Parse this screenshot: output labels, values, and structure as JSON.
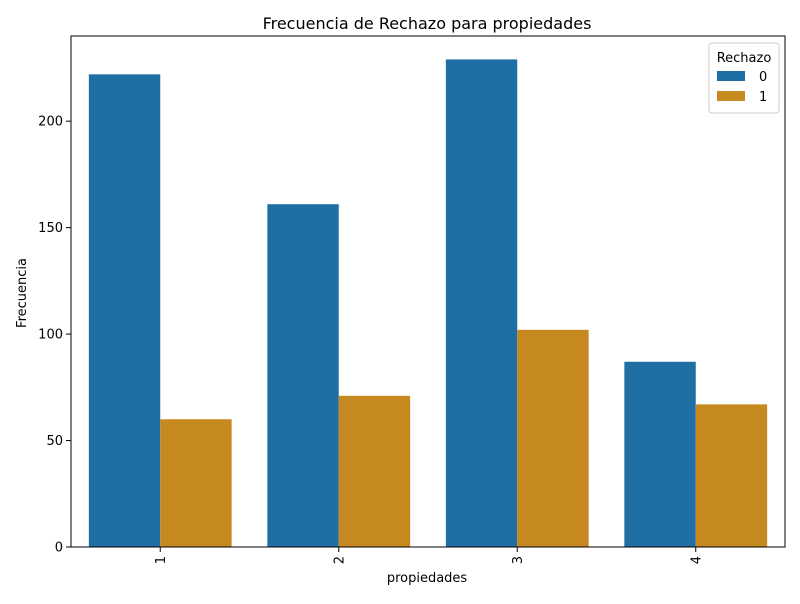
{
  "chart_data": {
    "type": "bar",
    "title": "Frecuencia de Rechazo para propiedades",
    "xlabel": "propiedades",
    "ylabel": "Frecuencia",
    "categories": [
      "1",
      "2",
      "3",
      "4"
    ],
    "series": [
      {
        "name": "0",
        "values": [
          222,
          161,
          229,
          87
        ],
        "color": "#1f6fa5"
      },
      {
        "name": "1",
        "values": [
          60,
          71,
          102,
          67
        ],
        "color": "#c6891f"
      }
    ],
    "ylim": [
      0,
      240
    ],
    "yticks": [
      0,
      50,
      100,
      150,
      200
    ],
    "grid": false,
    "legend": {
      "title": "Rechazo",
      "placement": "top-right"
    }
  }
}
